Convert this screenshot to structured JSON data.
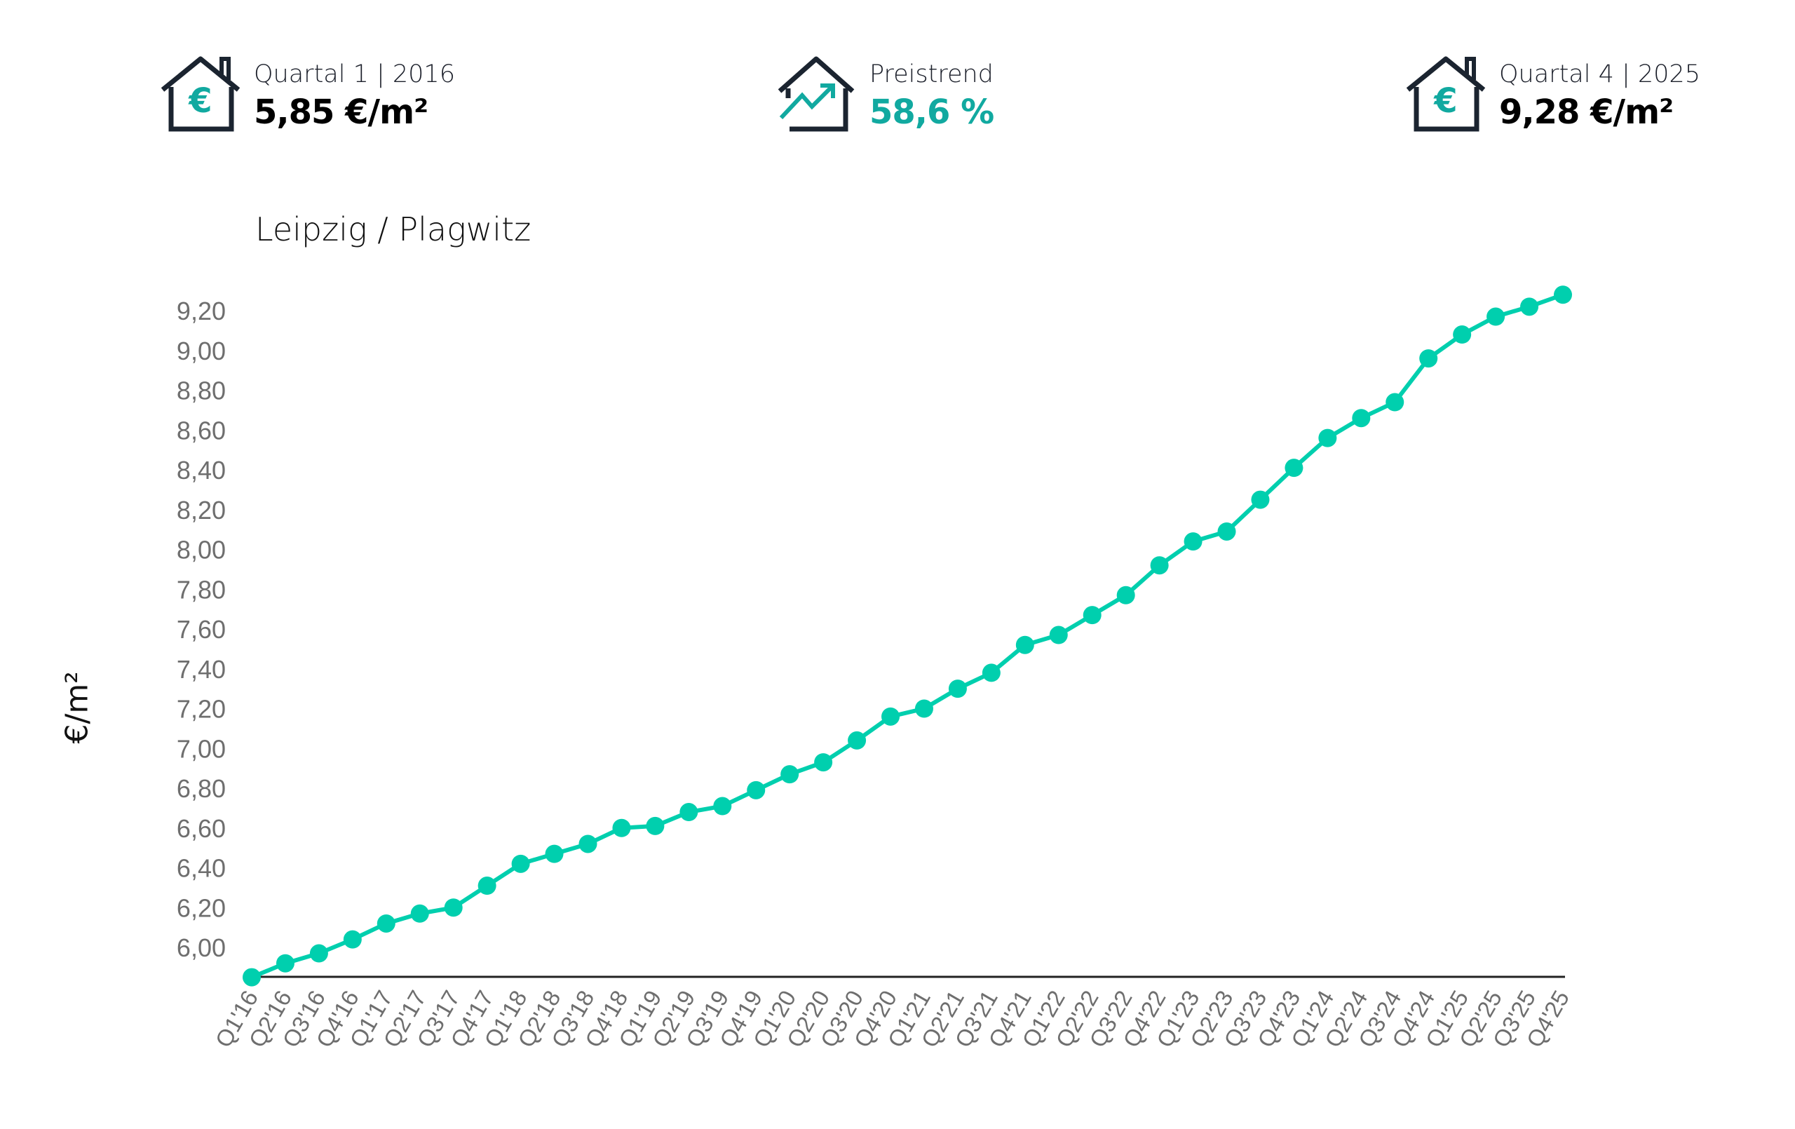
{
  "kpis": [
    {
      "label": "Quartal 1 | 2016",
      "value": "5,85 €/m²",
      "icon": "house-euro-icon"
    },
    {
      "label": "Preistrend",
      "value": "58,6 %",
      "icon": "house-trend-up-icon"
    },
    {
      "label": "Quartal 4 | 2025",
      "value": "9,28 €/m²",
      "icon": "house-euro-icon"
    }
  ],
  "colors": {
    "line": "#00cfae",
    "accent": "#11a9a0",
    "icon_dark": "#1b2430",
    "tick_text": "#6e6e6e"
  },
  "chart_data": {
    "type": "line",
    "title": "Leipzig / Plagwitz",
    "xlabel": "",
    "ylabel": "€/m²",
    "ylim": [
      5.85,
      9.3
    ],
    "yticks": [
      "6,00",
      "6,20",
      "6,40",
      "6,60",
      "6,80",
      "7,00",
      "7,20",
      "7,40",
      "7,60",
      "7,80",
      "8,00",
      "8,20",
      "8,40",
      "8,60",
      "8,80",
      "9,00",
      "9,20"
    ],
    "ytick_values": [
      6.0,
      6.2,
      6.4,
      6.6,
      6.8,
      7.0,
      7.2,
      7.4,
      7.6,
      7.8,
      8.0,
      8.2,
      8.4,
      8.6,
      8.8,
      9.0,
      9.2
    ],
    "grid": false,
    "categories": [
      "Q1'16",
      "Q2'16",
      "Q3'16",
      "Q4'16",
      "Q1'17",
      "Q2'17",
      "Q3'17",
      "Q4'17",
      "Q1'18",
      "Q2'18",
      "Q3'18",
      "Q4'18",
      "Q1'19",
      "Q2'19",
      "Q3'19",
      "Q4'19",
      "Q1'20",
      "Q2'20",
      "Q3'20",
      "Q4'20",
      "Q1'21",
      "Q2'21",
      "Q3'21",
      "Q4'21",
      "Q1'22",
      "Q2'22",
      "Q3'22",
      "Q4'22",
      "Q1'23",
      "Q2'23",
      "Q3'23",
      "Q4'23",
      "Q1'24",
      "Q2'24",
      "Q3'24",
      "Q4'24",
      "Q1'25",
      "Q2'25",
      "Q3'25",
      "Q4'25"
    ],
    "values": [
      5.85,
      5.92,
      5.97,
      6.04,
      6.12,
      6.17,
      6.2,
      6.31,
      6.42,
      6.47,
      6.52,
      6.6,
      6.61,
      6.68,
      6.71,
      6.79,
      6.87,
      6.93,
      7.04,
      7.16,
      7.2,
      7.3,
      7.38,
      7.52,
      7.57,
      7.67,
      7.77,
      7.92,
      8.04,
      8.09,
      8.25,
      8.41,
      8.56,
      8.66,
      8.74,
      8.96,
      9.08,
      9.17,
      9.22,
      9.28
    ]
  }
}
